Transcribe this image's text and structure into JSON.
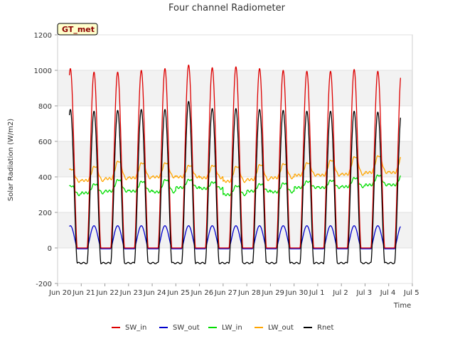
{
  "chart_data": {
    "type": "line",
    "title": "Four channel Radiometer",
    "xlabel": "Time",
    "ylabel": "Solar Radiation (W/m2)",
    "badge": "GT_met",
    "ylim": [
      -200,
      1200
    ],
    "yticks": [
      -200,
      0,
      200,
      400,
      600,
      800,
      1000,
      1200
    ],
    "xlim": [
      0,
      15
    ],
    "xticks": [
      {
        "pos": 0,
        "label": "Jun 20"
      },
      {
        "pos": 1,
        "label": "Jun 21"
      },
      {
        "pos": 2,
        "label": "Jun 22"
      },
      {
        "pos": 3,
        "label": "Jun 23"
      },
      {
        "pos": 4,
        "label": "Jun 24"
      },
      {
        "pos": 5,
        "label": "Jun 25"
      },
      {
        "pos": 6,
        "label": "Jun 26"
      },
      {
        "pos": 7,
        "label": "Jun 27"
      },
      {
        "pos": 8,
        "label": "Jun 28"
      },
      {
        "pos": 9,
        "label": "Jun 29"
      },
      {
        "pos": 10,
        "label": "Jun 30"
      },
      {
        "pos": 11,
        "label": "Jul 1"
      },
      {
        "pos": 12,
        "label": "Jul 2"
      },
      {
        "pos": 13,
        "label": "Jul 3"
      },
      {
        "pos": 14,
        "label": "Jul 4"
      },
      {
        "pos": 15,
        "label": "Jul 5"
      }
    ],
    "x_range_days": [
      0.5,
      14.5
    ],
    "daylight_window": [
      0.25,
      0.83
    ],
    "series": [
      {
        "name": "SW_in",
        "color": "#dd0000",
        "kind": "sw_in",
        "peaks": [
          1010,
          990,
          990,
          1000,
          1010,
          1030,
          1015,
          1020,
          1010,
          1000,
          995,
          995,
          1005,
          995
        ]
      },
      {
        "name": "SW_out",
        "color": "#0000cc",
        "kind": "sw_out",
        "peaks": [
          125,
          125,
          125,
          125,
          125,
          125,
          125,
          125,
          125,
          125,
          125,
          125,
          125,
          125
        ]
      },
      {
        "name": "LW_in",
        "color": "#00dd00",
        "kind": "lw",
        "base": [
          300,
          310,
          320,
          320,
          315,
          340,
          335,
          300,
          320,
          315,
          340,
          340,
          345,
          355
        ],
        "peak": [
          350,
          360,
          385,
          375,
          385,
          385,
          370,
          350,
          360,
          365,
          375,
          380,
          395,
          410
        ]
      },
      {
        "name": "LW_out",
        "color": "#ffa500",
        "kind": "lw",
        "base": [
          375,
          380,
          390,
          395,
          400,
          400,
          395,
          375,
          385,
          395,
          410,
          410,
          415,
          425
        ],
        "peak": [
          445,
          460,
          490,
          480,
          480,
          465,
          465,
          460,
          470,
          475,
          480,
          495,
          515,
          520
        ]
      },
      {
        "name": "Rnet",
        "color": "#000000",
        "kind": "rnet",
        "peaks": [
          780,
          770,
          775,
          780,
          780,
          825,
          785,
          785,
          780,
          775,
          770,
          770,
          770,
          765
        ],
        "night": -85
      }
    ],
    "bands": [
      [
        800,
        1000
      ],
      [
        400,
        600
      ],
      [
        0,
        200
      ]
    ]
  }
}
